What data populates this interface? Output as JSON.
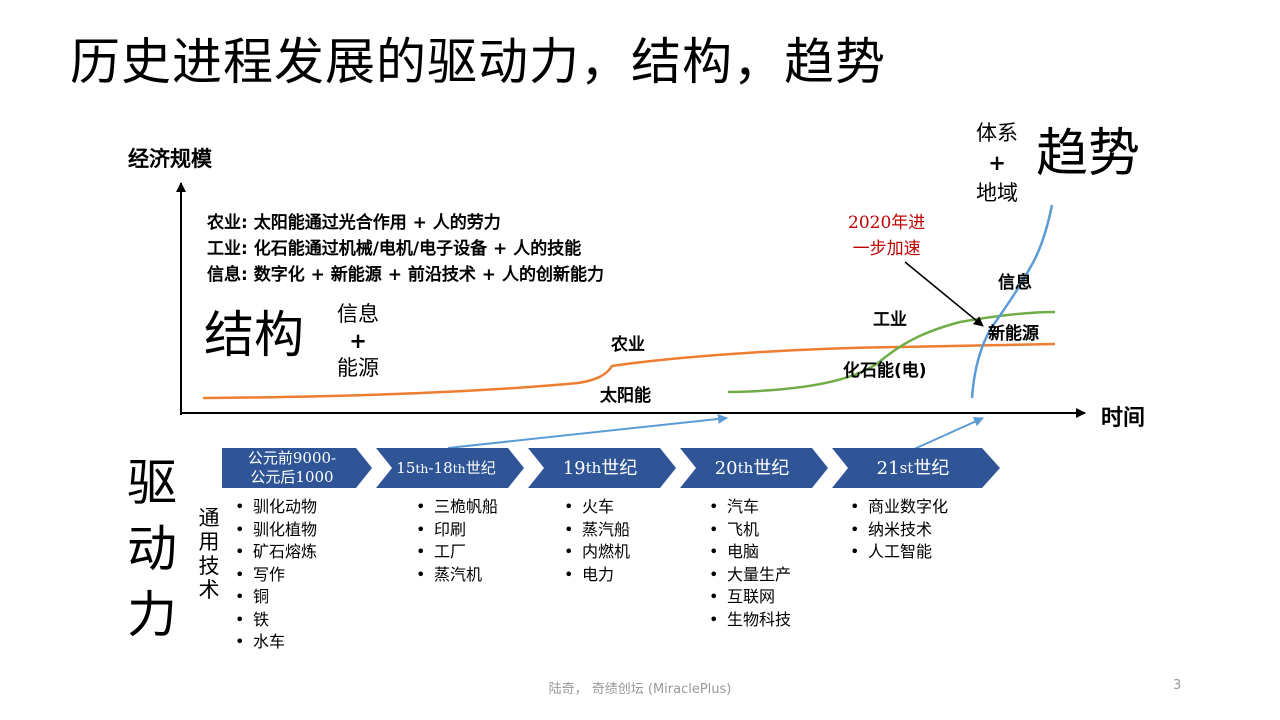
{
  "title": "历史进程发展的驱动力，结构，趋势",
  "axes": {
    "y_label": "经济规模",
    "x_label": "时间"
  },
  "descriptions": [
    "农业: 太阳能通过光合作用 + 人的劳力",
    "工业: 化石能通过机械/电机/电子设备 + 人的技能",
    "信息: 数字化 + 新能源 + 前沿技术 + 人的创新能力"
  ],
  "structure": {
    "heading": "结构",
    "stack": [
      "信息",
      "+",
      "能源"
    ]
  },
  "curve_labels": {
    "agri_top": "农业",
    "agri_bottom": "太阳能",
    "indu_top": "工业",
    "indu_bottom": "化石能(电)",
    "info_top": "信息",
    "info_bottom": "新能源"
  },
  "trend": {
    "heading": "趋势",
    "stack": [
      "体系",
      "+",
      "地域"
    ]
  },
  "note": [
    "2020年进",
    "一步加速"
  ],
  "driving_force": {
    "heading": "驱动力",
    "tech_label": "通用技术"
  },
  "timeline": [
    {
      "label_html": "公元前9000-<br>公元后1000",
      "items": [
        "驯化动物",
        "驯化植物",
        "矿石熔炼",
        "写作",
        "铜",
        "铁",
        "水车"
      ]
    },
    {
      "label_html": "15<sup>th</sup>-18<sup>th</sup> 世纪",
      "items": [
        "三桅帆船",
        "印刷",
        "工厂",
        "蒸汽机"
      ]
    },
    {
      "label_html": "19<sup>th</sup> 世纪",
      "items": [
        "火车",
        "蒸汽船",
        "内燃机",
        "电力"
      ]
    },
    {
      "label_html": "20<sup>th</sup> 世纪",
      "items": [
        "汽车",
        "飞机",
        "电脑",
        "大量生产",
        "互联网",
        "生物科技"
      ]
    },
    {
      "label_html": "21<sup>st</sup> 世纪",
      "items": [
        "商业数字化",
        "纳米技术",
        "人工智能"
      ]
    }
  ],
  "footer": "陆奇， 奇绩创坛 (MiraclePlus)",
  "page_number": "3",
  "colors": {
    "agri_curve": "#ED7D31",
    "indu_curve": "#70AD47",
    "info_curve": "#5B9BD5",
    "chevron": "#2F5597",
    "note": "#C00000",
    "axis": "#000000"
  }
}
